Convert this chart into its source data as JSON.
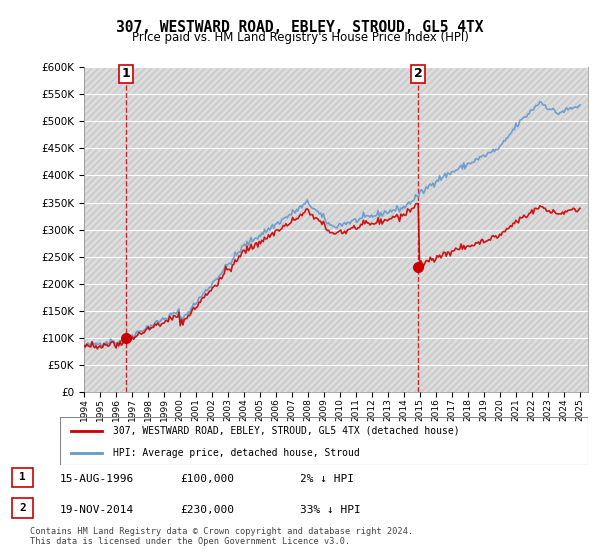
{
  "title": "307, WESTWARD ROAD, EBLEY, STROUD, GL5 4TX",
  "subtitle": "Price paid vs. HM Land Registry's House Price Index (HPI)",
  "ylabel_vals": [
    "£0",
    "£50K",
    "£100K",
    "£150K",
    "£200K",
    "£250K",
    "£300K",
    "£350K",
    "£400K",
    "£450K",
    "£500K",
    "£550K",
    "£600K"
  ],
  "ylim": [
    0,
    600000
  ],
  "yticks": [
    0,
    50000,
    100000,
    150000,
    200000,
    250000,
    300000,
    350000,
    400000,
    450000,
    500000,
    550000,
    600000
  ],
  "sale1_date": 1996.62,
  "sale1_price": 100000,
  "sale1_label": "1",
  "sale2_date": 2014.89,
  "sale2_price": 230000,
  "sale2_label": "2",
  "legend_entry1": "307, WESTWARD ROAD, EBLEY, STROUD, GL5 4TX (detached house)",
  "legend_entry2": "HPI: Average price, detached house, Stroud",
  "table_row1": "1    15-AUG-1996         £100,000         2% ↓ HPI",
  "table_row2": "2    19-NOV-2014         £230,000         33% ↓ HPI",
  "footnote": "Contains HM Land Registry data © Crown copyright and database right 2024.\nThis data is licensed under the Open Government Licence v3.0.",
  "line_color_sale": "#cc0000",
  "line_color_hpi": "#6699cc",
  "marker_color": "#cc0000",
  "bg_color": "#e8e8e8",
  "plot_bg_color": "#f0f0f8",
  "hatch_color": "#cccccc",
  "grid_color": "#ffffff",
  "vline_color": "#cc0000"
}
